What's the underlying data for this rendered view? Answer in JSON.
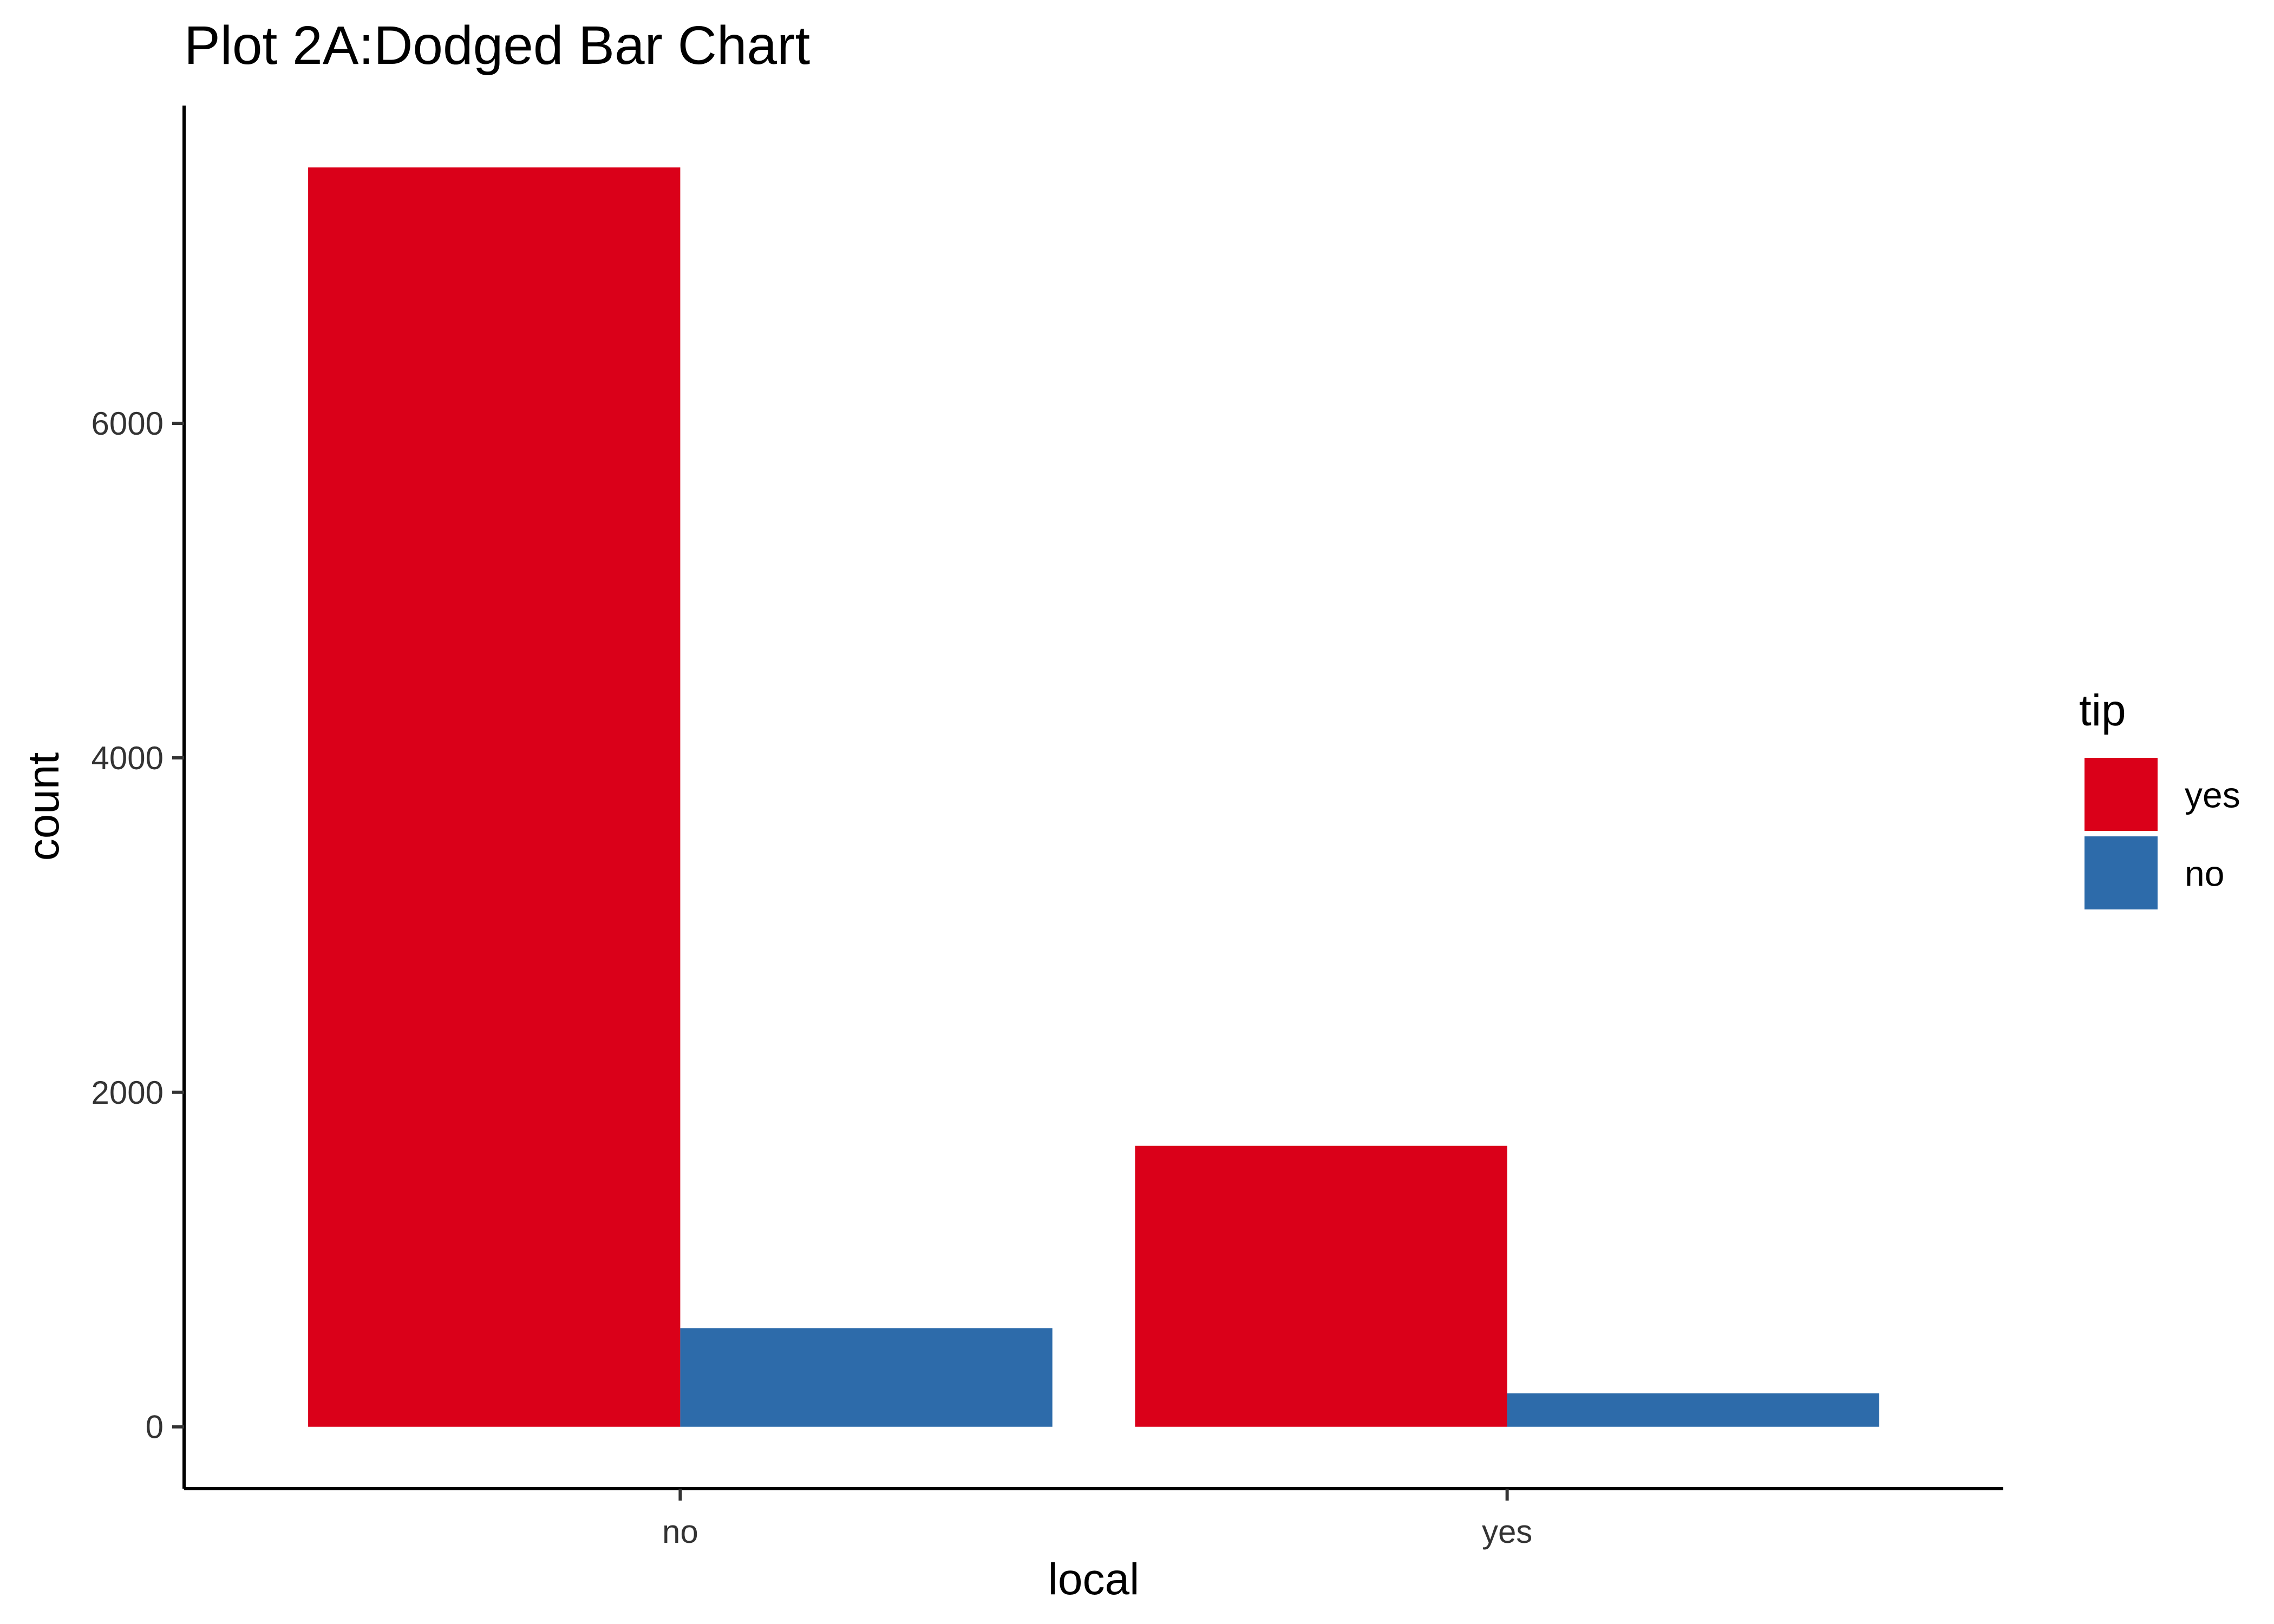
{
  "chart_data": {
    "type": "bar",
    "title": "Plot 2A:Dodged Bar Chart",
    "xlabel": "local",
    "ylabel": "count",
    "categories": [
      "no",
      "yes"
    ],
    "series": [
      {
        "name": "yes",
        "values": [
          7530,
          1680
        ],
        "color": "#DA0019"
      },
      {
        "name": "no",
        "values": [
          590,
          200
        ],
        "color": "#2D6BAA"
      }
    ],
    "ylim": [
      -370,
      7900
    ],
    "yticks": [
      0,
      2000,
      4000,
      6000
    ],
    "grid": false,
    "legend": {
      "title": "tip",
      "position": "right",
      "entries": [
        "yes",
        "no"
      ]
    },
    "colors": {
      "yes": "#DA0019",
      "no": "#2D6BAA"
    }
  }
}
